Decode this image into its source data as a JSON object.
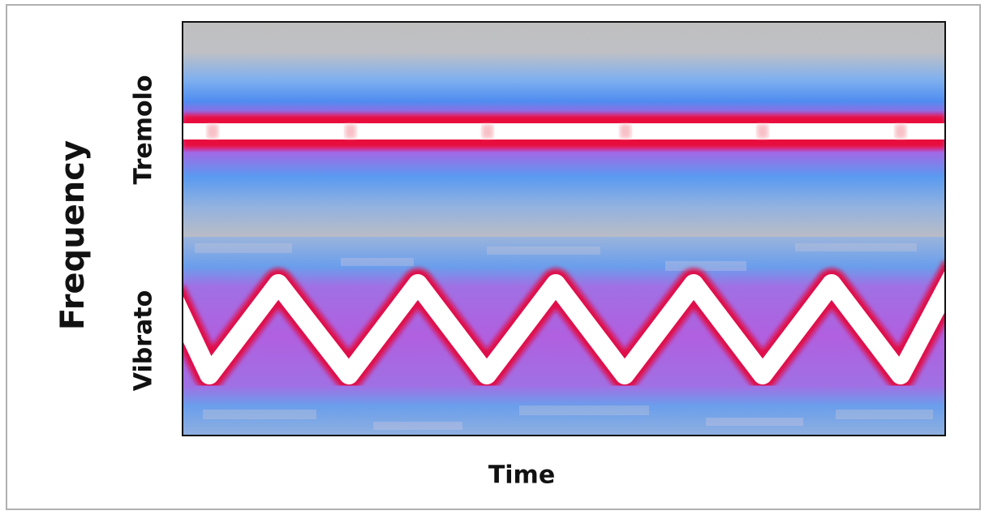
{
  "labels": {
    "y_axis": "Frequency",
    "tremolo": "Tremolo",
    "vibrato": "Vibrato",
    "x_axis": "Time"
  }
}
